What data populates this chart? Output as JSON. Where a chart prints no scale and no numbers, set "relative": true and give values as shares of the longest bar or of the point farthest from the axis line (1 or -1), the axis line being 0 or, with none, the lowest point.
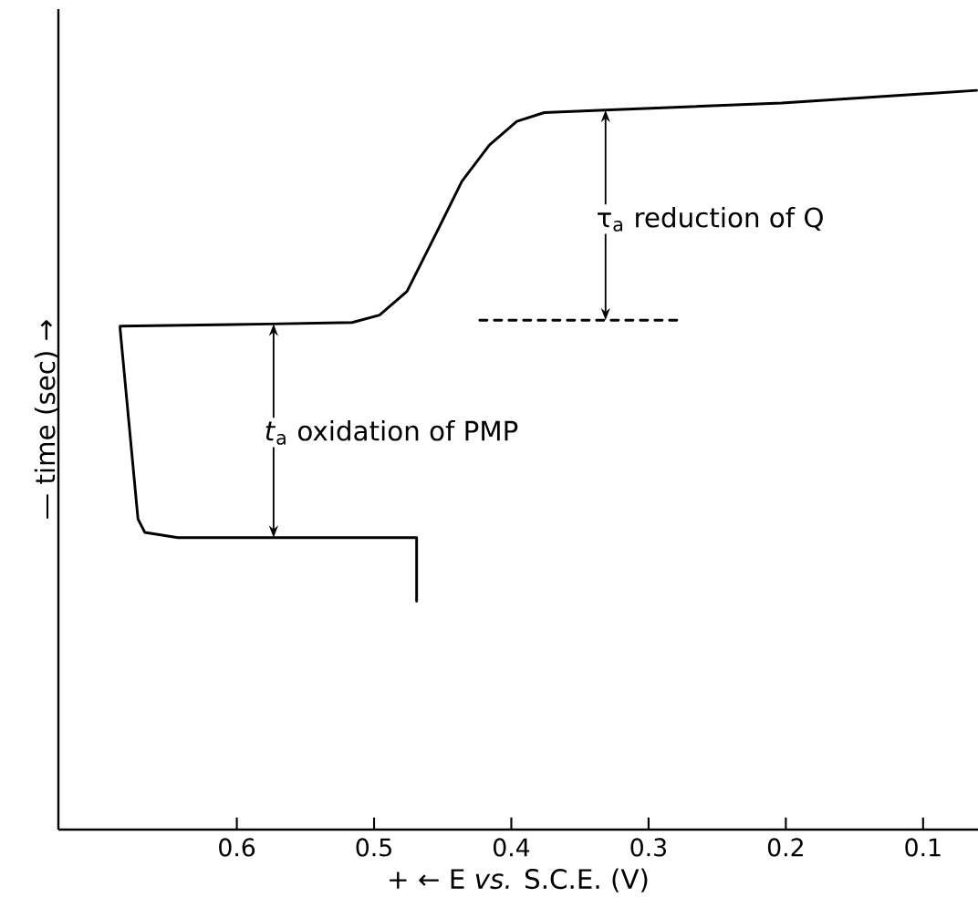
{
  "chart_data": {
    "type": "line",
    "relative": true,
    "marker": "none",
    "line_style": "solid",
    "xlabel": "+ ← E *vs.* S.C.E. (V)",
    "ylabel": "— time (sec) →",
    "xlim": [
      0.73,
      0.06
    ],
    "xticks": [
      0.6,
      0.5,
      0.4,
      0.3,
      0.2,
      0.1
    ],
    "series": [
      {
        "color": "#000000",
        "x": [
          0.469,
          0.469,
          0.643,
          0.667,
          0.672,
          0.685,
          0.685,
          0.576,
          0.516,
          0.496,
          0.476,
          0.456,
          0.436,
          0.416,
          0.396,
          0.376,
          0.336,
          0.203,
          0.061
        ],
        "values": [
          0.309,
          0.395,
          0.395,
          0.402,
          0.42,
          0.677,
          0.681,
          0.684,
          0.686,
          0.696,
          0.728,
          0.802,
          0.877,
          0.926,
          0.958,
          0.97,
          0.973,
          0.983,
          1.0
        ]
      },
      {
        "type": "line",
        "line_style": "dashed",
        "color": "#000000",
        "x": [
          0.423,
          0.276
        ],
        "values": [
          0.689,
          0.689
        ]
      }
    ],
    "annotations": [
      "*t*$_{a}$ oxidation of PMP",
      "τ$_{a}$ reduction of Q"
    ]
  }
}
